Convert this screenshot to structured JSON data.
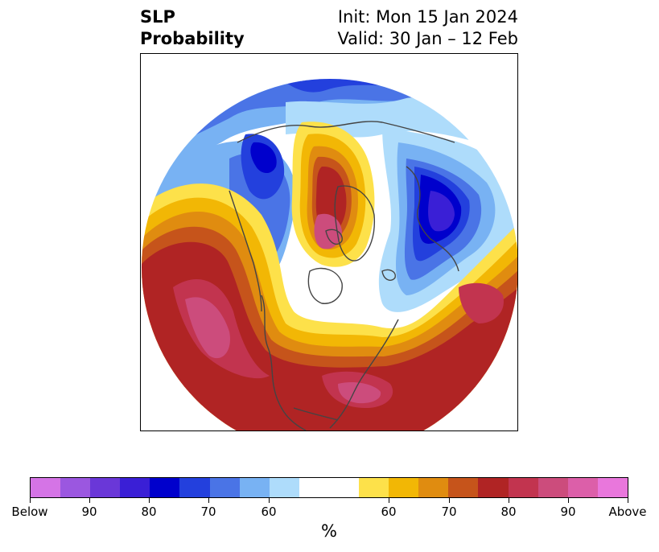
{
  "header": {
    "title_line1": "SLP",
    "title_line2": "Probability",
    "init_text": "Init: Mon 15 Jan 2024",
    "valid_text": "Valid: 30 Jan – 12 Feb"
  },
  "colorbar": {
    "unit": "%",
    "segments": [
      {
        "color": "#d574e6"
      },
      {
        "color": "#9b57e0"
      },
      {
        "color": "#6a37d8"
      },
      {
        "color": "#3a1fd6"
      },
      {
        "color": "#0000cc"
      },
      {
        "color": "#2340dd"
      },
      {
        "color": "#4a74e6"
      },
      {
        "color": "#78b2f3"
      },
      {
        "color": "#aedcfb"
      },
      {
        "color": "#ffffff",
        "wide": true
      },
      {
        "color": "#fde14a"
      },
      {
        "color": "#f2b705"
      },
      {
        "color": "#e08c10"
      },
      {
        "color": "#c6541b"
      },
      {
        "color": "#b02424"
      },
      {
        "color": "#c2344f"
      },
      {
        "color": "#cc4c7c"
      },
      {
        "color": "#dc5fa9"
      },
      {
        "color": "#e977dc"
      }
    ],
    "tick_labels": [
      "Below",
      "90",
      "80",
      "70",
      "60",
      "60",
      "70",
      "80",
      "90",
      "Above"
    ]
  },
  "map": {
    "palette": {
      "blue_light": "#aedcfb",
      "blue_1": "#78b2f3",
      "blue_2": "#4a74e6",
      "blue_3": "#2340dd",
      "blue_4": "#0000cc",
      "blue_5": "#3a1fd6",
      "yellow": "#fde14a",
      "orange_1": "#f2b705",
      "orange_2": "#e08c10",
      "orange_3": "#c6541b",
      "red": "#b02424",
      "rose": "#c2344f",
      "pink_1": "#cc4c7c",
      "pink_2": "#dc5fa9",
      "coast": "#444444"
    }
  }
}
